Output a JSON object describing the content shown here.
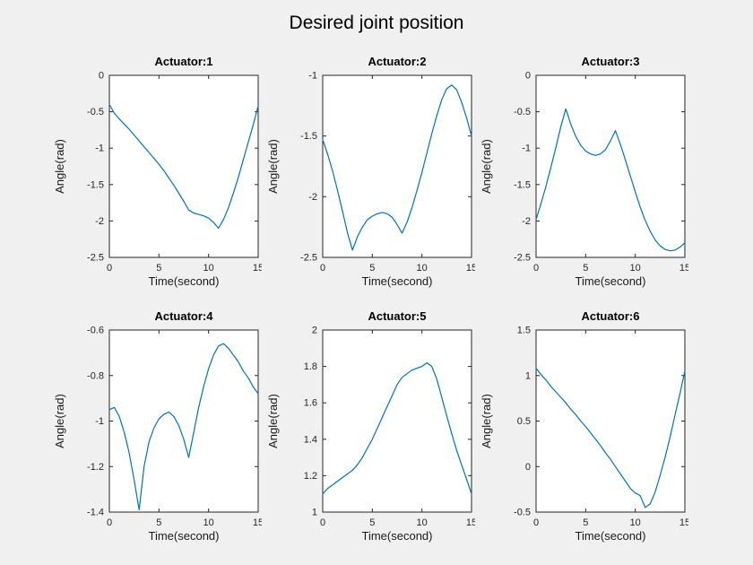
{
  "figure": {
    "title": "Desired joint position",
    "background": "#f0f0f0",
    "plot_background": "#ffffff",
    "line_color": "#0072bd",
    "axis_color": "#262626"
  },
  "chart_data": [
    {
      "type": "line",
      "title": "Actuator:1",
      "xlabel": "Time(second)",
      "ylabel": "Angle(rad)",
      "xlim": [
        0,
        15
      ],
      "ylim": [
        -2.5,
        0
      ],
      "xticks": [
        0,
        5,
        10,
        15
      ],
      "yticks": [
        -2.5,
        -2,
        -1.5,
        -1,
        -0.5,
        0
      ],
      "x": [
        0,
        0.5,
        1,
        1.5,
        2,
        2.5,
        3,
        3.5,
        4,
        4.5,
        5,
        5.5,
        6,
        6.5,
        7,
        7.5,
        8,
        8.5,
        9,
        9.5,
        10,
        10.5,
        11,
        11.5,
        12,
        12.5,
        13,
        13.5,
        14,
        14.5,
        15
      ],
      "y": [
        -0.4,
        -0.52,
        -0.6,
        -0.67,
        -0.74,
        -0.82,
        -0.9,
        -0.98,
        -1.06,
        -1.14,
        -1.22,
        -1.31,
        -1.41,
        -1.51,
        -1.62,
        -1.73,
        -1.85,
        -1.89,
        -1.91,
        -1.93,
        -1.96,
        -2.02,
        -2.1,
        -1.98,
        -1.82,
        -1.62,
        -1.4,
        -1.16,
        -0.92,
        -0.68,
        -0.42
      ]
    },
    {
      "type": "line",
      "title": "Actuator:2",
      "xlabel": "Time(second)",
      "ylabel": "Angle(rad)",
      "xlim": [
        0,
        15
      ],
      "ylim": [
        -2.5,
        -1
      ],
      "xticks": [
        0,
        5,
        10,
        15
      ],
      "yticks": [
        -2.5,
        -2,
        -1.5,
        -1
      ],
      "x": [
        0,
        0.5,
        1,
        1.5,
        2,
        2.5,
        3,
        3.5,
        4,
        4.5,
        5,
        5.5,
        6,
        6.5,
        7,
        7.5,
        8,
        8.5,
        9,
        9.5,
        10,
        10.5,
        11,
        11.5,
        12,
        12.5,
        13,
        13.5,
        14,
        14.5,
        15
      ],
      "y": [
        -1.53,
        -1.65,
        -1.79,
        -1.95,
        -2.12,
        -2.3,
        -2.44,
        -2.33,
        -2.25,
        -2.19,
        -2.16,
        -2.14,
        -2.13,
        -2.14,
        -2.17,
        -2.23,
        -2.3,
        -2.21,
        -2.09,
        -1.95,
        -1.8,
        -1.64,
        -1.48,
        -1.33,
        -1.2,
        -1.11,
        -1.08,
        -1.12,
        -1.22,
        -1.35,
        -1.5
      ]
    },
    {
      "type": "line",
      "title": "Actuator:3",
      "xlabel": "Time(second)",
      "ylabel": "Angle(rad)",
      "xlim": [
        0,
        15
      ],
      "ylim": [
        -2.5,
        0
      ],
      "xticks": [
        0,
        5,
        10,
        15
      ],
      "yticks": [
        -2.5,
        -2,
        -1.5,
        -1,
        -0.5,
        0
      ],
      "x": [
        0,
        0.5,
        1,
        1.5,
        2,
        2.5,
        3,
        3.5,
        4,
        4.5,
        5,
        5.5,
        6,
        6.5,
        7,
        7.5,
        8,
        8.5,
        9,
        9.5,
        10,
        10.5,
        11,
        11.5,
        12,
        12.5,
        13,
        13.5,
        14,
        14.5,
        15
      ],
      "y": [
        -1.98,
        -1.76,
        -1.52,
        -1.26,
        -0.99,
        -0.7,
        -0.46,
        -0.67,
        -0.84,
        -0.96,
        -1.04,
        -1.08,
        -1.1,
        -1.08,
        -1.02,
        -0.9,
        -0.76,
        -0.95,
        -1.16,
        -1.38,
        -1.6,
        -1.81,
        -1.99,
        -2.14,
        -2.26,
        -2.34,
        -2.39,
        -2.41,
        -2.4,
        -2.36,
        -2.3
      ]
    },
    {
      "type": "line",
      "title": "Actuator:4",
      "xlabel": "Time(second)",
      "ylabel": "Angle(rad)",
      "xlim": [
        0,
        15
      ],
      "ylim": [
        -1.4,
        -0.6
      ],
      "xticks": [
        0,
        5,
        10,
        15
      ],
      "yticks": [
        -1.4,
        -1.2,
        -1,
        -0.8,
        -0.6
      ],
      "x": [
        0,
        0.5,
        1,
        1.5,
        2,
        2.5,
        3,
        3.5,
        4,
        4.5,
        5,
        5.5,
        6,
        6.5,
        7,
        7.5,
        8,
        8.5,
        9,
        9.5,
        10,
        10.5,
        11,
        11.5,
        12,
        12.5,
        13,
        13.5,
        14,
        14.5,
        15
      ],
      "y": [
        -0.95,
        -0.94,
        -0.98,
        -1.05,
        -1.14,
        -1.26,
        -1.39,
        -1.2,
        -1.09,
        -1.03,
        -0.99,
        -0.97,
        -0.96,
        -0.98,
        -1.02,
        -1.08,
        -1.16,
        -1.05,
        -0.94,
        -0.85,
        -0.77,
        -0.71,
        -0.67,
        -0.66,
        -0.68,
        -0.71,
        -0.74,
        -0.78,
        -0.81,
        -0.85,
        -0.88
      ]
    },
    {
      "type": "line",
      "title": "Actuator:5",
      "xlabel": "Time(second)",
      "ylabel": "Angle(rad)",
      "xlim": [
        0,
        15
      ],
      "ylim": [
        1,
        2
      ],
      "xticks": [
        0,
        5,
        10,
        15
      ],
      "yticks": [
        1,
        1.2,
        1.4,
        1.6,
        1.8,
        2
      ],
      "x": [
        0,
        0.5,
        1,
        1.5,
        2,
        2.5,
        3,
        3.5,
        4,
        4.5,
        5,
        5.5,
        6,
        6.5,
        7,
        7.5,
        8,
        8.5,
        9,
        9.5,
        10,
        10.5,
        11,
        11.5,
        12,
        12.5,
        13,
        13.5,
        14,
        14.5,
        15
      ],
      "y": [
        1.1,
        1.13,
        1.15,
        1.17,
        1.19,
        1.21,
        1.23,
        1.26,
        1.3,
        1.35,
        1.4,
        1.46,
        1.52,
        1.58,
        1.64,
        1.7,
        1.74,
        1.76,
        1.78,
        1.79,
        1.8,
        1.82,
        1.8,
        1.73,
        1.63,
        1.53,
        1.43,
        1.34,
        1.26,
        1.18,
        1.1
      ]
    },
    {
      "type": "line",
      "title": "Actuator:6",
      "xlabel": "Time(second)",
      "ylabel": "Angle(rad)",
      "xlim": [
        0,
        15
      ],
      "ylim": [
        -0.5,
        1.5
      ],
      "xticks": [
        0,
        5,
        10,
        15
      ],
      "yticks": [
        -0.5,
        0,
        0.5,
        1,
        1.5
      ],
      "x": [
        0,
        0.5,
        1,
        1.5,
        2,
        2.5,
        3,
        3.5,
        4,
        4.5,
        5,
        5.5,
        6,
        6.5,
        7,
        7.5,
        8,
        8.5,
        9,
        9.5,
        10,
        10.5,
        11,
        11.5,
        12,
        12.5,
        13,
        13.5,
        14,
        14.5,
        15
      ],
      "y": [
        1.08,
        1.01,
        0.95,
        0.88,
        0.82,
        0.76,
        0.7,
        0.63,
        0.57,
        0.5,
        0.44,
        0.37,
        0.3,
        0.23,
        0.15,
        0.08,
        0.0,
        -0.08,
        -0.16,
        -0.24,
        -0.29,
        -0.32,
        -0.45,
        -0.41,
        -0.28,
        -0.1,
        0.1,
        0.32,
        0.56,
        0.8,
        1.05
      ]
    }
  ]
}
